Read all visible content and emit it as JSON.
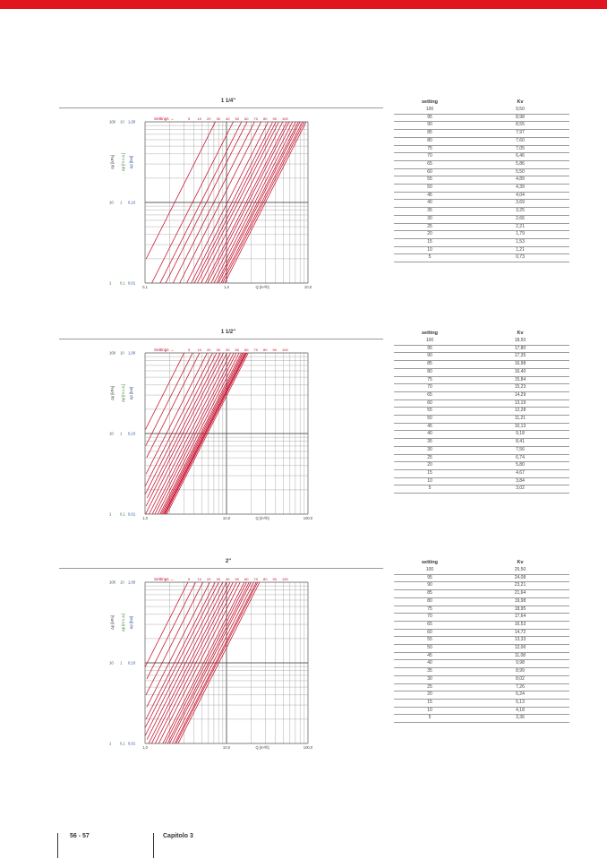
{
  "header": {
    "accent_color": "#e1151f"
  },
  "footer": {
    "pages": "56 - 57",
    "chapter": "Capitolo 3"
  },
  "sections": [
    {
      "title": "1 1/4\"",
      "chart_data": {
        "type": "line",
        "y_axis_scales": [
          "Δp [kPa]",
          "Δp [m c.a.]",
          "Δp [bar]"
        ],
        "y_ticks": [
          [
            "100",
            "10",
            "1,00"
          ],
          [
            "10",
            "1",
            "0,10"
          ],
          [
            "1",
            "0,1",
            "0,01"
          ]
        ],
        "x_ticks": [
          "0,1",
          "1,0",
          "10,0"
        ],
        "xlabel": "Q [m³/h]",
        "settings_label": "Settings",
        "settings_values": [
          "5",
          "10",
          "20",
          "30",
          "40",
          "50",
          "60",
          "70",
          "80",
          "90",
          "100"
        ],
        "xlim": [
          0.1,
          10
        ],
        "ylim": [
          1,
          100
        ],
        "log": true,
        "kv": [
          0.73,
          1.21,
          1.53,
          1.79,
          2.21,
          2.66,
          3.25,
          3.69,
          4.04,
          4.39,
          4.89,
          5.5,
          5.86,
          6.46,
          7.05,
          7.6,
          7.97,
          8.55,
          8.98,
          9.5
        ],
        "series_color": "#c8102e"
      },
      "table": {
        "headers": [
          "setting",
          "Kv"
        ],
        "rows": [
          [
            "100",
            "9,50"
          ],
          [
            "95",
            "8,98"
          ],
          [
            "90",
            "8,55"
          ],
          [
            "85",
            "7,97"
          ],
          [
            "80",
            "7,60"
          ],
          [
            "75",
            "7,05"
          ],
          [
            "70",
            "6,46"
          ],
          [
            "65",
            "5,86"
          ],
          [
            "60",
            "5,50"
          ],
          [
            "55",
            "4,89"
          ],
          [
            "50",
            "4,39"
          ],
          [
            "45",
            "4,04"
          ],
          [
            "40",
            "3,69"
          ],
          [
            "35",
            "3,25"
          ],
          [
            "30",
            "2,66"
          ],
          [
            "25",
            "2,21"
          ],
          [
            "20",
            "1,79"
          ],
          [
            "15",
            "1,53"
          ],
          [
            "10",
            "1,21"
          ],
          [
            "5",
            "0,73"
          ]
        ]
      }
    },
    {
      "title": "1 1/2\"",
      "chart_data": {
        "type": "line",
        "y_axis_scales": [
          "Δp [kPa]",
          "Δp [m c.a.]",
          "Δp [bar]"
        ],
        "y_ticks": [
          [
            "100",
            "10",
            "1,00"
          ],
          [
            "10",
            "1",
            "0,10"
          ],
          [
            "1",
            "0,1",
            "0,01"
          ]
        ],
        "x_ticks": [
          "1,0",
          "10,0",
          "100,0"
        ],
        "xlabel": "Q [m³/h]",
        "settings_label": "Settings",
        "settings_values": [
          "5",
          "10",
          "20",
          "30",
          "40",
          "50",
          "60",
          "70",
          "80",
          "90",
          "100"
        ],
        "xlim": [
          1,
          100
        ],
        "ylim": [
          1,
          100
        ],
        "log": true,
        "kv": [
          3.02,
          3.84,
          4.67,
          5.8,
          6.74,
          7.56,
          8.41,
          9.18,
          10.13,
          11.21,
          12.28,
          13.19,
          14.29,
          15.23,
          15.84,
          16.4,
          16.98,
          17.35,
          17.8,
          18.5
        ],
        "series_color": "#c8102e"
      },
      "table": {
        "headers": [
          "setting",
          "Kv"
        ],
        "rows": [
          [
            "100",
            "18,50"
          ],
          [
            "95",
            "17,80"
          ],
          [
            "90",
            "17,35"
          ],
          [
            "85",
            "16,98"
          ],
          [
            "80",
            "16,40"
          ],
          [
            "75",
            "15,84"
          ],
          [
            "70",
            "15,23"
          ],
          [
            "65",
            "14,29"
          ],
          [
            "60",
            "13,19"
          ],
          [
            "55",
            "12,28"
          ],
          [
            "50",
            "11,21"
          ],
          [
            "45",
            "10,13"
          ],
          [
            "40",
            "9,18"
          ],
          [
            "35",
            "8,41"
          ],
          [
            "30",
            "7,56"
          ],
          [
            "25",
            "6,74"
          ],
          [
            "20",
            "5,80"
          ],
          [
            "15",
            "4,67"
          ],
          [
            "10",
            "3,84"
          ],
          [
            "5",
            "3,02"
          ]
        ]
      }
    },
    {
      "title": "2\"",
      "chart_data": {
        "type": "line",
        "y_axis_scales": [
          "Δp [kPa]",
          "Δp [m c.a.]",
          "Δp [bar]"
        ],
        "y_ticks": [
          [
            "100",
            "10",
            "1,00"
          ],
          [
            "10",
            "1",
            "0,10"
          ],
          [
            "1",
            "0,1",
            "0,01"
          ]
        ],
        "x_ticks": [
          "1,0",
          "10,0",
          "100,0"
        ],
        "xlabel": "Q [m³/h]",
        "settings_label": "Settings",
        "settings_values": [
          "5",
          "10",
          "20",
          "30",
          "40",
          "50",
          "60",
          "70",
          "80",
          "90",
          "100"
        ],
        "xlim": [
          1,
          100
        ],
        "ylim": [
          1,
          100
        ],
        "log": true,
        "kv": [
          3.36,
          4.18,
          5.13,
          6.24,
          7.26,
          8.02,
          8.99,
          9.98,
          11.08,
          12.06,
          13.33,
          14.72,
          16.53,
          17.64,
          18.95,
          19.98,
          21.64,
          23.21,
          24.08,
          25.5
        ],
        "series_color": "#c8102e"
      },
      "table": {
        "headers": [
          "setting",
          "Kv"
        ],
        "rows": [
          [
            "100",
            "25,50"
          ],
          [
            "95",
            "24,08"
          ],
          [
            "90",
            "23,21"
          ],
          [
            "85",
            "21,64"
          ],
          [
            "80",
            "19,98"
          ],
          [
            "75",
            "18,95"
          ],
          [
            "70",
            "17,64"
          ],
          [
            "65",
            "16,53"
          ],
          [
            "60",
            "14,72"
          ],
          [
            "55",
            "13,33"
          ],
          [
            "50",
            "12,06"
          ],
          [
            "45",
            "11,08"
          ],
          [
            "40",
            "9,98"
          ],
          [
            "35",
            "8,99"
          ],
          [
            "30",
            "8,02"
          ],
          [
            "25",
            "7,26"
          ],
          [
            "20",
            "6,24"
          ],
          [
            "15",
            "5,13"
          ],
          [
            "10",
            "4,18"
          ],
          [
            "5",
            "3,36"
          ]
        ]
      }
    }
  ]
}
